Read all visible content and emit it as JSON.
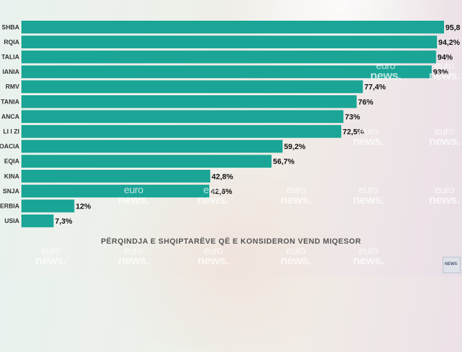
{
  "chart_data": {
    "type": "bar",
    "orientation": "horizontal",
    "categories": [
      "SHBA",
      "TURQIA",
      "ITALIA",
      "GJERMANIA",
      "RMV",
      "BRITANIA",
      "FRANCA",
      "MALI I ZI",
      "KROACIA",
      "GREQIA",
      "KINA",
      "BOSNJA",
      "SERBIA",
      "RUSIA"
    ],
    "category_labels_visible": [
      "SHBA",
      "RQIA",
      "TALIA",
      "IANIA",
      "RMV",
      "TANIA",
      "ANCA",
      "LI I ZI",
      "OACIA",
      "EQIA",
      "KINA",
      "SNJA",
      "ERBIA",
      "USIA"
    ],
    "values": [
      95.8,
      94.2,
      94,
      93,
      77.4,
      76,
      73,
      72.5,
      59.2,
      56.7,
      42.8,
      42.6,
      12,
      7.3
    ],
    "value_labels": [
      "95,8",
      "94,2%",
      "94%",
      "93%",
      "77,4%",
      "76%",
      "73%",
      "72,5%",
      "59,2%",
      "56,7%",
      "42,8%",
      "42,6%",
      "12%",
      "7,3%"
    ],
    "title": "PËRQINDJA E SHQIPTARËVE QË E KONSIDERON VEND MIQESOR",
    "xlabel": "",
    "ylabel": "",
    "xlim": [
      0,
      95.8
    ],
    "grid": false,
    "legend": "none",
    "bar_color": "#1aa596"
  },
  "watermark": {
    "line1": "euro",
    "line2": "news."
  },
  "logo": {
    "text": "NEWS"
  }
}
